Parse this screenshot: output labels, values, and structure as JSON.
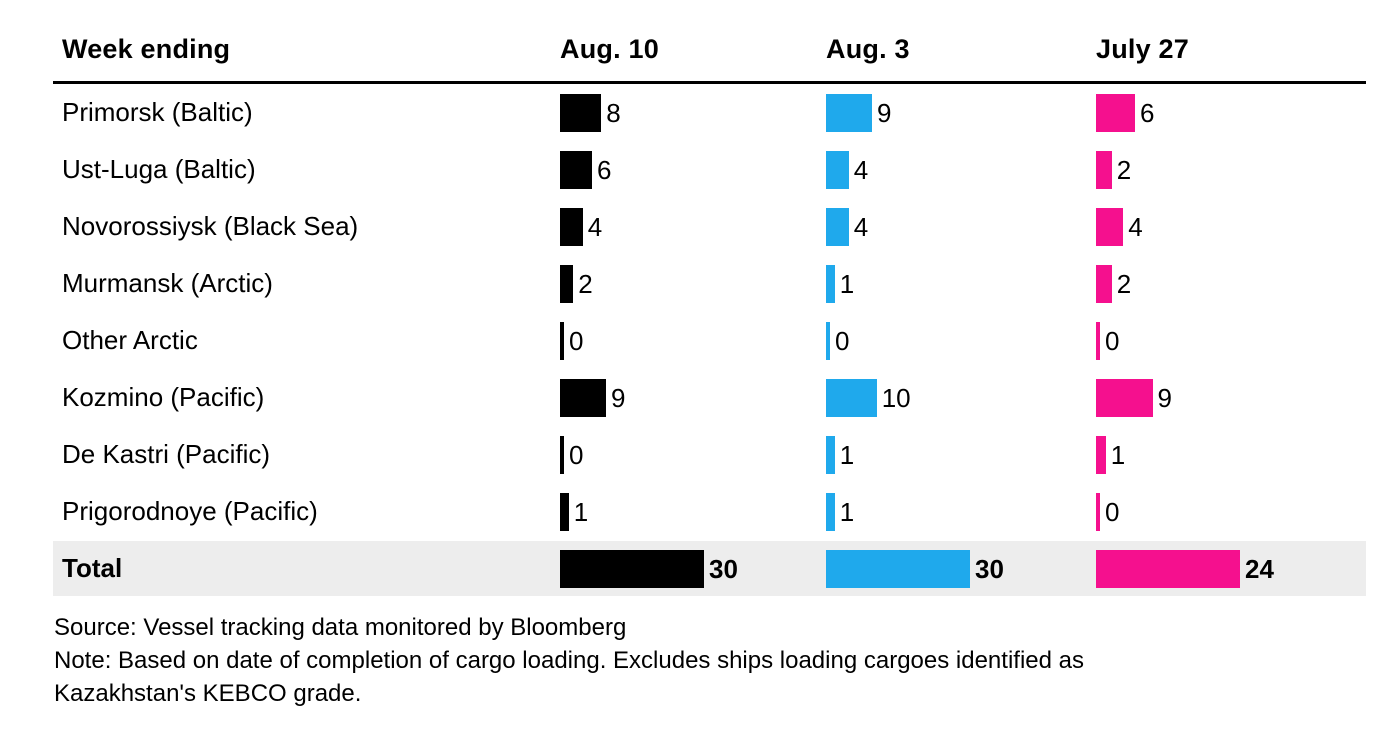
{
  "colors": {
    "series": [
      "#000000",
      "#1fa9ec",
      "#f5108e"
    ],
    "total_band": "#ededed",
    "header_rule": "#000000",
    "text": "#000000",
    "background": "#ffffff"
  },
  "table": {
    "week_ending_label": "Week ending",
    "columns": [
      "Aug. 10",
      "Aug. 3",
      "July 27"
    ],
    "rows": [
      {
        "label": "Primorsk (Baltic)",
        "values": [
          8,
          9,
          6
        ]
      },
      {
        "label": "Ust-Luga (Baltic)",
        "values": [
          6,
          4,
          2
        ]
      },
      {
        "label": "Novorossiysk (Black Sea)",
        "values": [
          4,
          4,
          4
        ]
      },
      {
        "label": "Murmansk (Arctic)",
        "values": [
          2,
          1,
          2
        ]
      },
      {
        "label": "Other Arctic",
        "values": [
          0,
          0,
          0
        ]
      },
      {
        "label": "Kozmino (Pacific)",
        "values": [
          9,
          10,
          9
        ]
      },
      {
        "label": "De Kastri (Pacific)",
        "values": [
          0,
          1,
          1
        ]
      },
      {
        "label": "Prigorodnoye (Pacific)",
        "values": [
          1,
          1,
          0
        ]
      }
    ],
    "total_row": {
      "label": "Total",
      "values": [
        30,
        30,
        24
      ]
    }
  },
  "footer": {
    "source": "Source: Vessel tracking data monitored by Bloomberg",
    "note_lines": [
      "Note: Based on date of completion of cargo loading. Excludes ships loading cargoes identified as",
      "Kazakhstan's KEBCO grade."
    ]
  },
  "chart_data": {
    "type": "bar",
    "orientation": "horizontal",
    "title": "",
    "categories": [
      "Primorsk (Baltic)",
      "Ust-Luga (Baltic)",
      "Novorossiysk (Black Sea)",
      "Murmansk (Arctic)",
      "Other Arctic",
      "Kozmino (Pacific)",
      "De Kastri (Pacific)",
      "Prigorodnoye (Pacific)"
    ],
    "series": [
      {
        "name": "Aug. 10",
        "color": "#000000",
        "values": [
          8,
          6,
          4,
          2,
          0,
          9,
          0,
          1
        ],
        "total": 30
      },
      {
        "name": "Aug. 3",
        "color": "#1fa9ec",
        "values": [
          9,
          4,
          4,
          1,
          0,
          10,
          1,
          1
        ],
        "total": 30
      },
      {
        "name": "July 27",
        "color": "#f5108e",
        "values": [
          6,
          2,
          4,
          2,
          0,
          9,
          1,
          0
        ],
        "total": 24
      }
    ],
    "value_labels_shown": true,
    "bars_scaled_to_column_total": true,
    "legend_position": "column-headers",
    "grid": false,
    "xlabel": "",
    "ylabel": "Week ending"
  }
}
